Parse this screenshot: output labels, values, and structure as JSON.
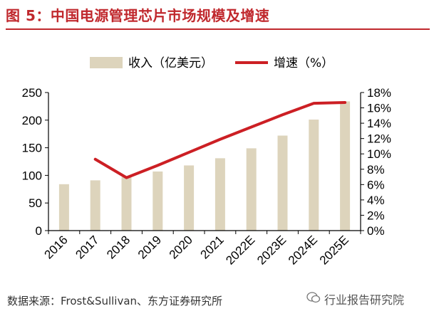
{
  "header": {
    "title": "图 5：中国电源管理芯片市场规模及增速"
  },
  "footer": {
    "source": "数据来源：Frost&Sullivan、东方证券研究所",
    "watermark": "行业报告研究院"
  },
  "colors": {
    "accent": "#c0282d",
    "bar": "#ddd4bc",
    "line": "#cc1f24"
  },
  "chart_data": {
    "type": "bar",
    "categories": [
      "2016",
      "2017",
      "2018",
      "2019",
      "2020",
      "2021",
      "2022E",
      "2023E",
      "2024E",
      "2025E"
    ],
    "series": [
      {
        "name": "收入（亿美元）",
        "type": "bar",
        "axis": "left",
        "values": [
          84,
          91,
          97,
          107,
          118,
          131,
          149,
          172,
          201,
          234
        ]
      },
      {
        "name": "增速（%）",
        "type": "line",
        "axis": "right",
        "values": [
          null,
          9.3,
          6.9,
          8.5,
          10.2,
          11.9,
          13.5,
          15.1,
          16.6,
          16.7
        ]
      }
    ],
    "ylim": [
      0,
      250
    ],
    "yticks": [
      0,
      50,
      100,
      150,
      200,
      250
    ],
    "y2lim": [
      0,
      18
    ],
    "y2ticks": [
      "0%",
      "2%",
      "4%",
      "6%",
      "8%",
      "10%",
      "12%",
      "14%",
      "16%",
      "18%"
    ],
    "legend": "top-center",
    "grid": false
  }
}
